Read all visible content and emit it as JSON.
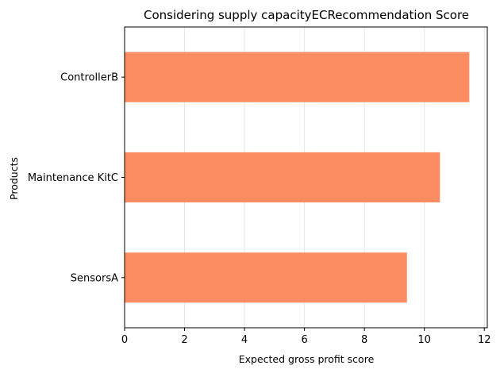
{
  "chart_data": {
    "type": "bar",
    "orientation": "horizontal",
    "title": "Considering supply capacityECRecommendation Score",
    "xlabel": "Expected gross profit score",
    "ylabel": "Products",
    "categories": [
      "SensorsA",
      "Maintenance KitC",
      "ControllerB"
    ],
    "values": [
      9.42,
      10.52,
      11.5
    ],
    "xlim": [
      0,
      12.1
    ],
    "xticks": [
      0,
      2,
      4,
      6,
      8,
      10,
      12
    ],
    "grid": "x",
    "bar_color": "#fc8d62"
  }
}
